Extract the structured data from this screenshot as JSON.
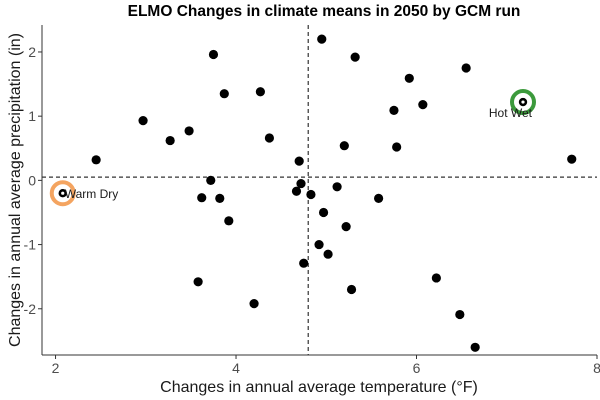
{
  "chart_data": {
    "type": "scatter",
    "title": "ELMO Changes in climate means in 2050 by GCM run",
    "xlabel": "Changes in annual average temperature (°F)",
    "ylabel": "Changes in annual average precipitation (in)",
    "xlim": [
      1.85,
      8.0
    ],
    "ylim": [
      -2.72,
      2.42
    ],
    "x_ticks": [
      2,
      4,
      6,
      8
    ],
    "y_ticks": [
      -2,
      -1,
      0,
      1,
      2
    ],
    "grid": false,
    "reference_lines": {
      "vertical_x": 4.8,
      "horizontal_y": 0.05
    },
    "points": [
      {
        "x": 2.45,
        "y": 0.32
      },
      {
        "x": 2.97,
        "y": 0.93
      },
      {
        "x": 3.27,
        "y": 0.62
      },
      {
        "x": 3.48,
        "y": 0.77
      },
      {
        "x": 3.58,
        "y": -1.58
      },
      {
        "x": 3.62,
        "y": -0.27
      },
      {
        "x": 3.72,
        "y": 0.0
      },
      {
        "x": 3.75,
        "y": 1.96
      },
      {
        "x": 3.82,
        "y": -0.28
      },
      {
        "x": 3.87,
        "y": 1.35
      },
      {
        "x": 3.92,
        "y": -0.63
      },
      {
        "x": 4.2,
        "y": -1.92
      },
      {
        "x": 4.27,
        "y": 1.38
      },
      {
        "x": 4.37,
        "y": 0.66
      },
      {
        "x": 4.67,
        "y": -0.17
      },
      {
        "x": 4.7,
        "y": 0.3
      },
      {
        "x": 4.72,
        "y": -0.05
      },
      {
        "x": 4.75,
        "y": -1.29
      },
      {
        "x": 4.83,
        "y": -0.22
      },
      {
        "x": 4.92,
        "y": -1.0
      },
      {
        "x": 4.95,
        "y": 2.2
      },
      {
        "x": 4.97,
        "y": -0.5
      },
      {
        "x": 5.02,
        "y": -1.15
      },
      {
        "x": 5.12,
        "y": -0.1
      },
      {
        "x": 5.2,
        "y": 0.54
      },
      {
        "x": 5.22,
        "y": -0.72
      },
      {
        "x": 5.28,
        "y": -1.7
      },
      {
        "x": 5.32,
        "y": 1.92
      },
      {
        "x": 5.58,
        "y": -0.28
      },
      {
        "x": 5.75,
        "y": 1.09
      },
      {
        "x": 5.78,
        "y": 0.52
      },
      {
        "x": 5.92,
        "y": 1.59
      },
      {
        "x": 6.07,
        "y": 1.18
      },
      {
        "x": 6.22,
        "y": -1.52
      },
      {
        "x": 6.48,
        "y": -2.09
      },
      {
        "x": 6.55,
        "y": 1.75
      },
      {
        "x": 6.65,
        "y": -2.6
      },
      {
        "x": 7.72,
        "y": 0.33
      }
    ],
    "highlights": [
      {
        "label": "Warm Dry",
        "x": 2.08,
        "y": -0.2,
        "color": "#f4a460",
        "label_side": "right"
      },
      {
        "label": "Hot Wet",
        "x": 7.18,
        "y": 1.22,
        "color": "#3c9a3c",
        "label_side": "left"
      }
    ],
    "colors": {
      "points": "#000000",
      "reference_lines": "#333333",
      "axis": "#333333"
    }
  }
}
